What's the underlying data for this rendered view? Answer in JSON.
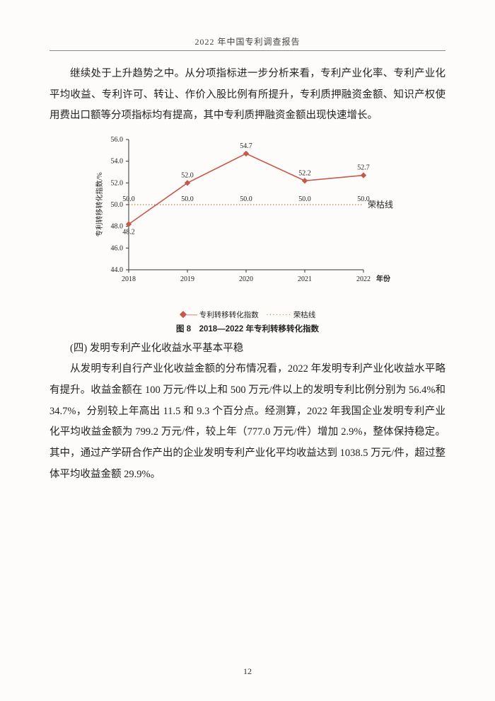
{
  "header": {
    "title": "2022 年中国专利调查报告"
  },
  "para1": "继续处于上升趋势之中。从分项指标进一步分析来看，专利产业化率、专利产业化平均收益、专利许可、转让、作价入股比例有所提升，专利质押融资金额、知识产权使用费出口额等分项指标均有提高，其中专利质押融资金额出现快速增长。",
  "chart": {
    "type": "line",
    "ylabel": "专利转移转化指数/%",
    "xlabel_suffix": "年份",
    "years": [
      "2018",
      "2019",
      "2020",
      "2021",
      "2022"
    ],
    "values": [
      48.2,
      52.0,
      54.7,
      52.2,
      52.7
    ],
    "baseline_labels": [
      "50.0",
      "50.0",
      "50.0",
      "50.0",
      "50.0"
    ],
    "ylim": [
      44.0,
      56.0
    ],
    "ytick_step": 2.0,
    "line_color": "#c55a4a",
    "marker_color": "#c55a4a",
    "baseline_color": "#b08a4a",
    "baseline_style": "dotted",
    "axis_color": "#333333",
    "text_color": "#222222",
    "background": "#fdfcfb",
    "annotation_right": "荣枯线",
    "legend": {
      "series": "专利转移转化指数",
      "baseline": "荣枯线"
    },
    "tick_fontsize": 10,
    "label_fontsize": 10,
    "value_fontsize": 10
  },
  "figure_caption": "图 8　2018—2022 年专利转移转化指数",
  "subheading": "(四) 发明专利产业化收益水平基本平稳",
  "para2": "从发明专利自行产业化收益金额的分布情况看，2022 年发明专利产业化收益水平略有提升。收益金额在 100 万元/件以上和 500 万元/件以上的发明专利比例分别为 56.4%和 34.7%，分别较上年高出 11.5 和 9.3 个百分点。经测算，2022 年我国企业发明专利产业化平均收益金额为 799.2 万元/件，较上年（777.0 万元/件）增加 2.9%，整体保持稳定。其中，通过产学研合作产出的企业发明专利产业化平均收益达到 1038.5 万元/件，超过整体平均收益金额 29.9%。",
  "page_number": "12"
}
